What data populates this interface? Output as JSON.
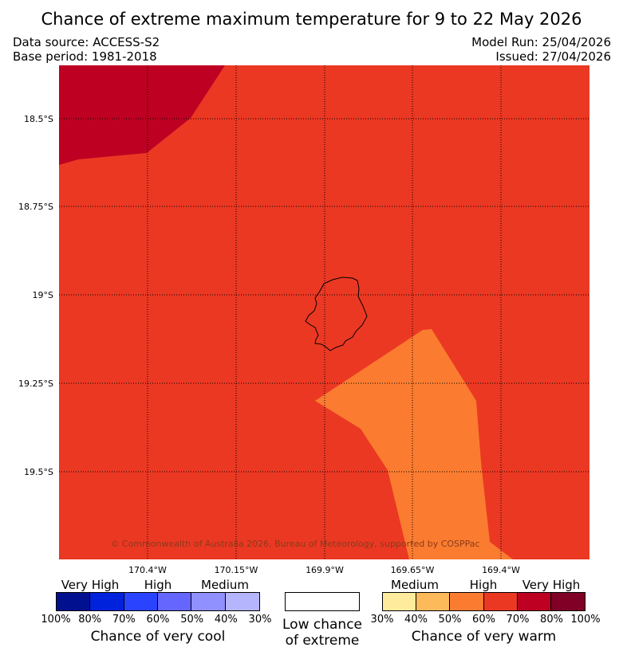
{
  "header": {
    "title": "Chance of extreme maximum temperature for 9 to 22 May 2026",
    "data_source": "Data source: ACCESS-S2",
    "base_period": "Base period: 1981-2018",
    "model_run": "Model Run: 25/04/2026",
    "issued": "Issued: 27/04/2026"
  },
  "map": {
    "lat_labels": [
      "18.5°S",
      "18.75°S",
      "19°S",
      "19.25°S",
      "19.5°S"
    ],
    "lon_labels": [
      "170.4°W",
      "170.15°W",
      "169.9°W",
      "169.65°W",
      "169.4°W"
    ],
    "copyright": "© Commonwealth of Australia 2026, Bureau of Meteorology, supported by COSPPac",
    "regions": [
      {
        "name": "very-high-warm-area",
        "category": "70%-80% (High)",
        "color": "#be0022"
      },
      {
        "name": "high-warm-area",
        "category": "60%-70% (High)",
        "color": "#eb3823"
      },
      {
        "name": "medium-warm-area",
        "category": "50%-60% (Medium)",
        "color": "#fb7c30"
      }
    ],
    "island": "Niue"
  },
  "legend": {
    "cool": {
      "levels": [
        "Very High",
        "High",
        "Medium"
      ],
      "ticks": [
        "100%",
        "80%",
        "70%",
        "60%",
        "50%",
        "40%",
        "30%"
      ],
      "colors": [
        "#00108f",
        "#0022dc",
        "#2a43fe",
        "#6466fe",
        "#9090fe",
        "#b5b5fe"
      ],
      "caption": "Chance of very cool"
    },
    "neutral": {
      "caption_line1": "Low chance",
      "caption_line2": "of extreme",
      "color": "#ffffff"
    },
    "warm": {
      "levels": [
        "Medium",
        "High",
        "Very High"
      ],
      "ticks": [
        "30%",
        "40%",
        "50%",
        "60%",
        "70%",
        "80%",
        "100%"
      ],
      "colors": [
        "#ffeb9c",
        "#fdba5b",
        "#fb7c30",
        "#eb3823",
        "#be0022",
        "#800026"
      ],
      "caption": "Chance of very warm"
    }
  }
}
